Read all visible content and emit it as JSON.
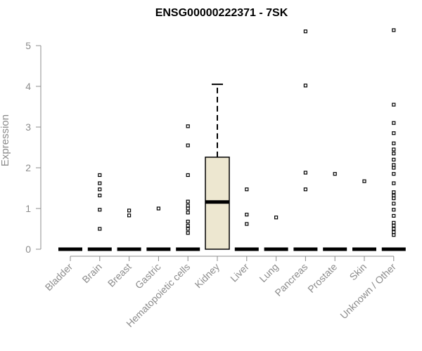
{
  "chart_data": {
    "type": "boxplot",
    "title": "ENSG00000222371 - 7SK",
    "xlabel": "",
    "ylabel": "Expression",
    "ylim": [
      0,
      5.4
    ],
    "yticks": [
      0,
      1,
      2,
      3,
      4,
      5
    ],
    "categories": [
      "Bladder",
      "Brain",
      "Breast",
      "Gastric",
      "Hematopoietic cells",
      "Kidney",
      "Liver",
      "Lung",
      "Pancreas",
      "Prostate",
      "Skin",
      "Unknown / Other"
    ],
    "boxes": [
      {
        "median": 0,
        "q1": 0,
        "q3": 0,
        "whisker_low": 0,
        "whisker_high": 0,
        "outliers": []
      },
      {
        "median": 0,
        "q1": 0,
        "q3": 0,
        "whisker_low": 0,
        "whisker_high": 0,
        "outliers": [
          0.5,
          0.97,
          1.32,
          1.47,
          1.62,
          1.82
        ]
      },
      {
        "median": 0,
        "q1": 0,
        "q3": 0,
        "whisker_low": 0,
        "whisker_high": 0,
        "outliers": [
          0.83,
          0.95
        ]
      },
      {
        "median": 0,
        "q1": 0,
        "q3": 0,
        "whisker_low": 0,
        "whisker_high": 0,
        "outliers": [
          1.0
        ]
      },
      {
        "median": 0,
        "q1": 0,
        "q3": 0,
        "whisker_low": 0,
        "whisker_high": 0,
        "outliers": [
          0.4,
          0.5,
          0.58,
          0.68,
          0.9,
          1.0,
          1.07,
          1.17,
          1.82,
          2.55,
          3.02
        ]
      },
      {
        "median": 1.16,
        "q1": 0,
        "q3": 2.26,
        "whisker_low": 0,
        "whisker_high": 4.05,
        "outliers": []
      },
      {
        "median": 0,
        "q1": 0,
        "q3": 0,
        "whisker_low": 0,
        "whisker_high": 0,
        "outliers": [
          0.62,
          0.85,
          1.47
        ]
      },
      {
        "median": 0,
        "q1": 0,
        "q3": 0,
        "whisker_low": 0,
        "whisker_high": 0,
        "outliers": [
          0.78
        ]
      },
      {
        "median": 0,
        "q1": 0,
        "q3": 0,
        "whisker_low": 0,
        "whisker_high": 0,
        "outliers": [
          1.47,
          1.88,
          4.02,
          5.35
        ]
      },
      {
        "median": 0,
        "q1": 0,
        "q3": 0,
        "whisker_low": 0,
        "whisker_high": 0,
        "outliers": [
          1.85
        ]
      },
      {
        "median": 0,
        "q1": 0,
        "q3": 0,
        "whisker_low": 0,
        "whisker_high": 0,
        "outliers": [
          1.67
        ]
      },
      {
        "median": 0,
        "q1": 0,
        "q3": 0,
        "whisker_low": 0,
        "whisker_high": 0,
        "outliers": [
          0.35,
          0.42,
          0.5,
          0.58,
          0.65,
          0.82,
          0.97,
          1.12,
          1.25,
          1.32,
          1.4,
          1.62,
          1.85,
          2.0,
          2.07,
          2.2,
          2.35,
          2.45,
          2.6,
          2.85,
          3.1,
          3.55,
          5.38
        ]
      }
    ],
    "box_fill": "#ede7d0",
    "outlier_color": "#000000",
    "axis_color": "#8c8c8c",
    "grid": false,
    "legend": "none"
  }
}
